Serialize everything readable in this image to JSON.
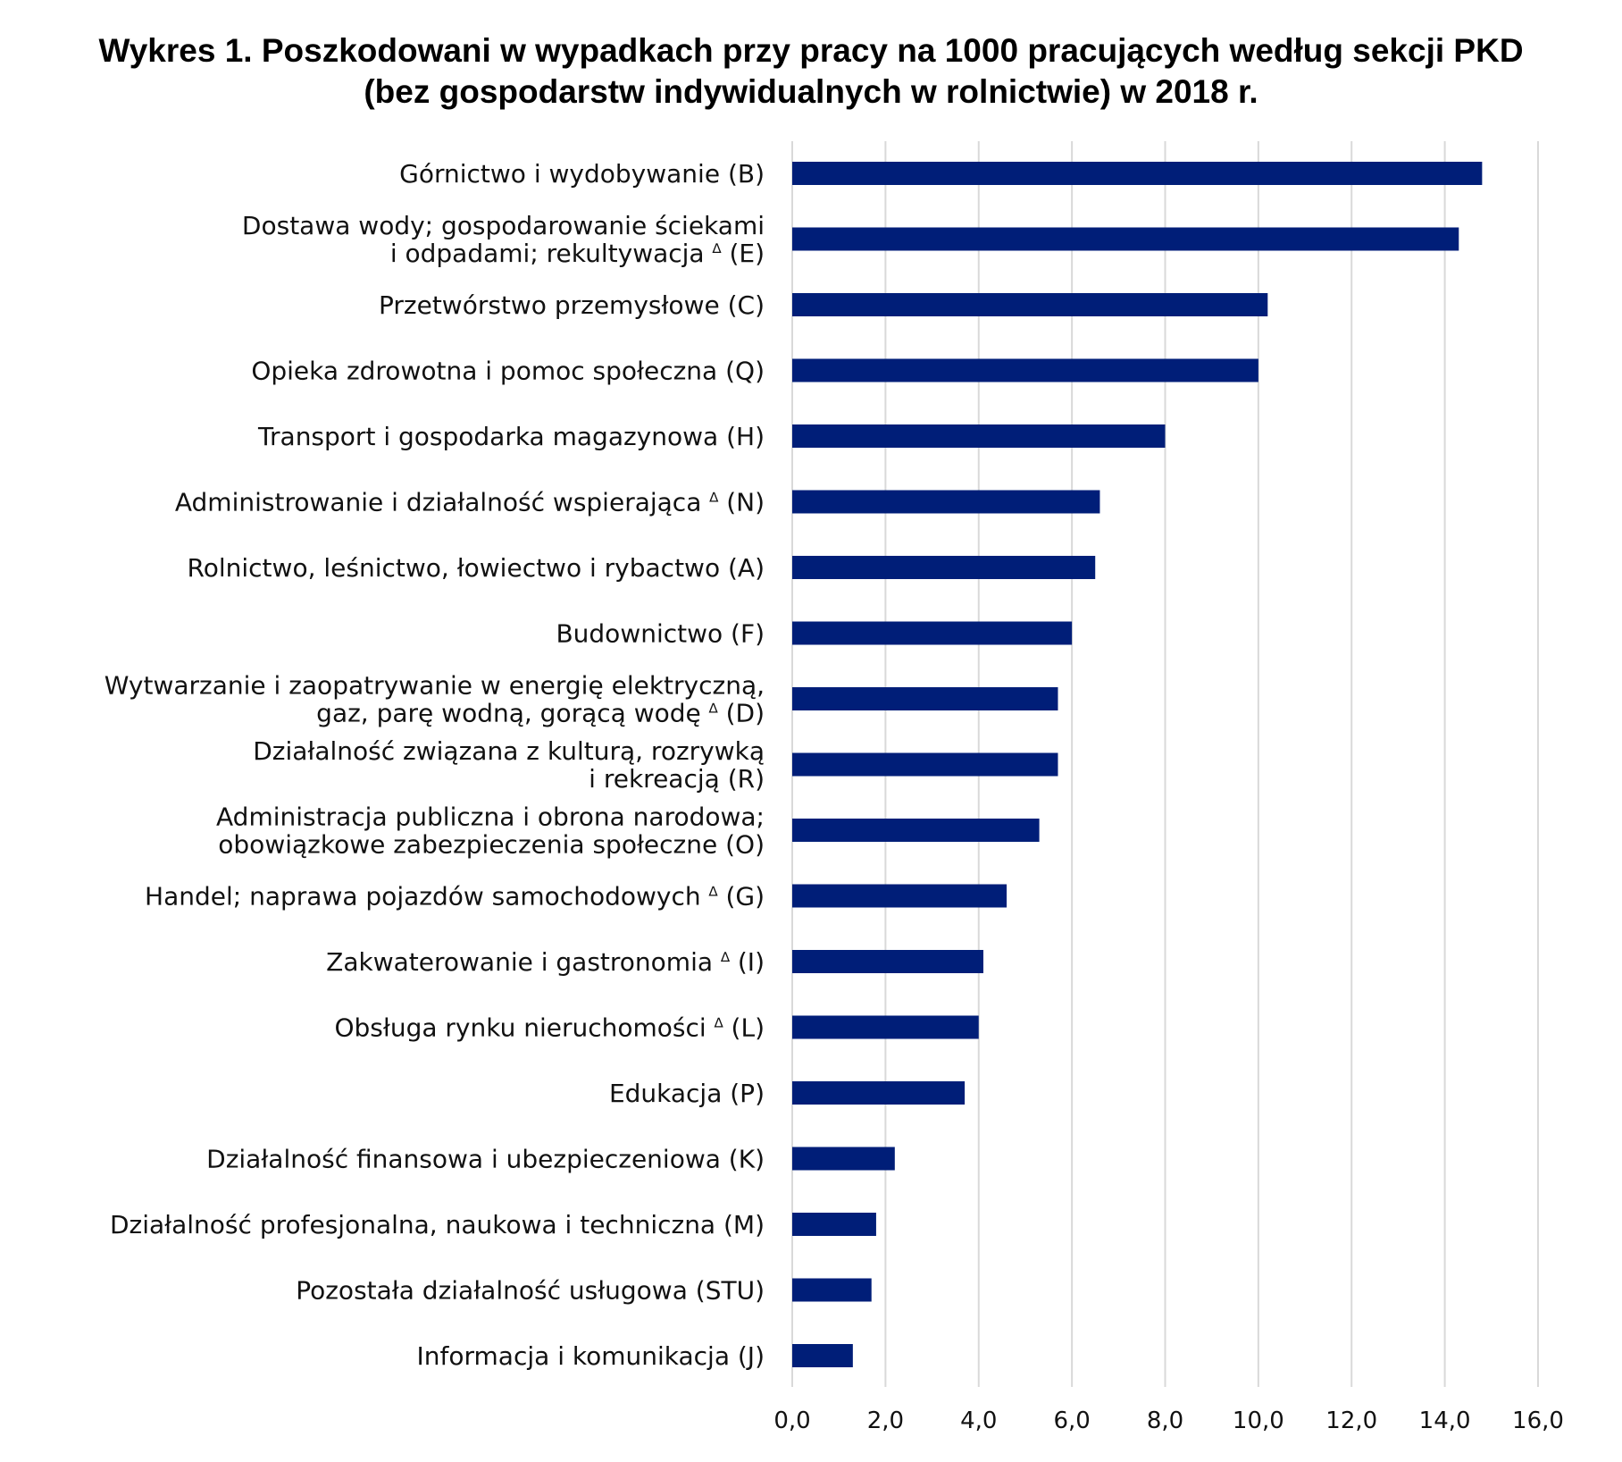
{
  "title_lines": [
    "Wykres 1. Poszkodowani w wypadkach przy pracy na 1000 pracujących według sekcji PKD",
    "(bez gospodarstw indywidualnych w rolnictwie) w 2018 r."
  ],
  "colors": {
    "bar": "#001e78",
    "grid": "#d9d9d9"
  },
  "chart_data": {
    "type": "bar",
    "orientation": "horizontal",
    "title": "Wykres 1. Poszkodowani w wypadkach przy pracy na 1000 pracujących według sekcji PKD (bez gospodarstw indywidualnych w rolnictwie) w 2018 r.",
    "categories": [
      [
        "Górnictwo i wydobywanie (B)"
      ],
      [
        "Dostawa wody; gospodarowanie ściekami",
        "i odpadami; rekultywacja ∆ (E)"
      ],
      [
        "Przetwórstwo przemysłowe (C)"
      ],
      [
        "Opieka zdrowotna i pomoc społeczna (Q)"
      ],
      [
        "Transport i gospodarka magazynowa (H)"
      ],
      [
        "Administrowanie i działalność wspierająca ∆ (N)"
      ],
      [
        "Rolnictwo, leśnictwo, łowiectwo i rybactwo (A)"
      ],
      [
        "Budownictwo (F)"
      ],
      [
        "Wytwarzanie i zaopatrywanie w energię elektryczną,",
        "gaz, parę wodną, gorącą wodę ∆ (D)"
      ],
      [
        "Działalność związana z kulturą, rozrywką",
        "i rekreacją (R)"
      ],
      [
        "Administracja publiczna i obrona narodowa;",
        "obowiązkowe zabezpieczenia społeczne (O)"
      ],
      [
        "Handel; naprawa pojazdów samochodowych ∆ (G)"
      ],
      [
        "Zakwaterowanie i gastronomia ∆ (I)"
      ],
      [
        "Obsługa rynku nieruchomości ∆ (L)"
      ],
      [
        "Edukacja (P)"
      ],
      [
        "Działalność finansowa i ubezpieczeniowa (K)"
      ],
      [
        "Działalność profesjonalna, naukowa i techniczna (M)"
      ],
      [
        "Pozostała działalność usługowa (STU)"
      ],
      [
        "Informacja i komunikacja (J)"
      ]
    ],
    "values": [
      14.8,
      14.3,
      10.2,
      10.0,
      8.0,
      6.6,
      6.5,
      6.0,
      5.7,
      5.7,
      5.3,
      4.6,
      4.1,
      4.0,
      3.7,
      2.2,
      1.8,
      1.7,
      1.3
    ],
    "xlim": [
      0,
      16
    ],
    "ticks": [
      "0,0",
      "2,0",
      "4,0",
      "6,0",
      "8,0",
      "10,0",
      "12,0",
      "14,0",
      "16,0"
    ],
    "grid": true,
    "legend": "none"
  }
}
